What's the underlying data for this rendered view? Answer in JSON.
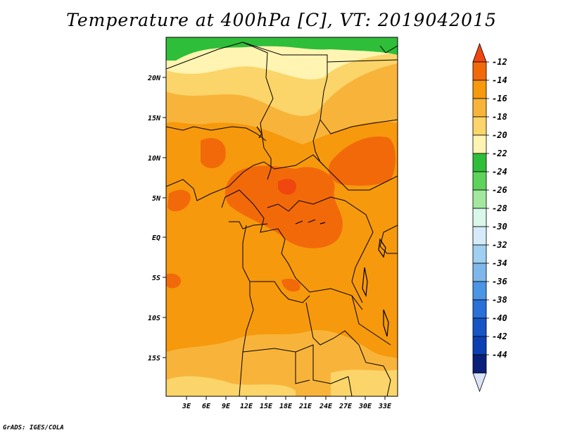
{
  "title": "Temperature at 400hPa [C], VT: 2019042015",
  "credit": "GrADS: IGES/COLA",
  "map": {
    "lat_ticks": [
      "20N",
      "15N",
      "10N",
      "5N",
      "EQ",
      "5S",
      "10S",
      "15S"
    ],
    "lon_ticks": [
      "3E",
      "6E",
      "9E",
      "12E",
      "15E",
      "18E",
      "21E",
      "24E",
      "27E",
      "30E",
      "33E"
    ]
  },
  "colorbar": {
    "labels": [
      "-12",
      "-14",
      "-16",
      "-18",
      "-20",
      "-22",
      "-24",
      "-26",
      "-28",
      "-30",
      "-32",
      "-34",
      "-36",
      "-38",
      "-40",
      "-42",
      "-44"
    ],
    "colors": [
      "#f0460f",
      "#f2690a",
      "#f6990c",
      "#f8b43a",
      "#fbd56a",
      "#fff4b1",
      "#2fbe3a",
      "#5ed35b",
      "#a3e89e",
      "#d9f7ea",
      "#d5ebf9",
      "#9fd0f1",
      "#7fb7ea",
      "#4a95e4",
      "#2a70d8",
      "#1954c4",
      "#0c40b2",
      "#0a1f7a",
      "#dde3f9"
    ]
  }
}
